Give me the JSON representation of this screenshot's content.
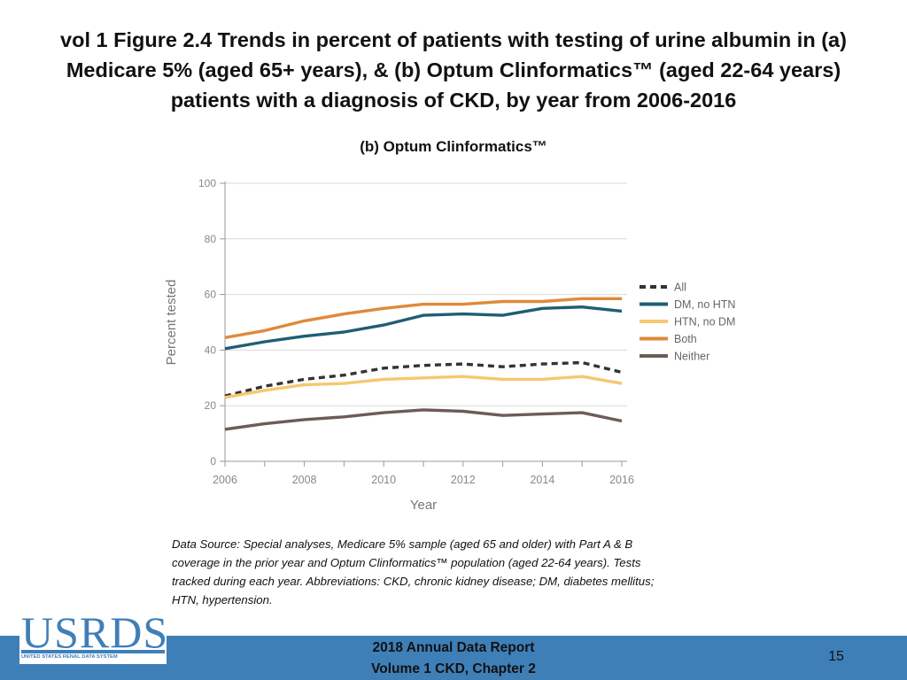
{
  "title": {
    "lines": [
      "vol 1 Figure 2.4 Trends in percent of patients with testing of urine albumin in (a)",
      "Medicare 5% (aged 65+ years), & (b) Optum Clinformatics™ (aged 22-64 years)",
      "patients with a diagnosis of CKD, by year from 2006-2016"
    ]
  },
  "chart_data": {
    "type": "line",
    "title": "(b) Optum Clinformatics™",
    "xlabel": "Year",
    "ylabel": "Percent tested",
    "x": [
      2006,
      2007,
      2008,
      2009,
      2010,
      2011,
      2012,
      2013,
      2014,
      2015,
      2016
    ],
    "xticks": [
      "2006",
      "2008",
      "2010",
      "2012",
      "2014",
      "2016"
    ],
    "yticks": [
      "0",
      "20",
      "40",
      "60",
      "80",
      "100"
    ],
    "xlim": [
      2006,
      2016
    ],
    "ylim": [
      0,
      100
    ],
    "grid": "horizontal",
    "legend_position": "right",
    "series": [
      {
        "name": "All",
        "color": "#333333",
        "style": "dashed",
        "values": [
          23.5,
          27,
          29.5,
          31,
          33.5,
          34.5,
          35,
          34,
          35,
          35.5,
          32
        ]
      },
      {
        "name": "DM, no HTN",
        "color": "#1f5e72",
        "style": "solid",
        "values": [
          40.5,
          43,
          45,
          46.5,
          49,
          52.5,
          53,
          52.5,
          55,
          55.5,
          54
        ]
      },
      {
        "name": "HTN, no DM",
        "color": "#f5c870",
        "style": "solid",
        "values": [
          23,
          25.5,
          27.5,
          28,
          29.5,
          30,
          30.5,
          29.5,
          29.5,
          30.5,
          28
        ]
      },
      {
        "name": "Both",
        "color": "#e0893a",
        "style": "solid",
        "values": [
          44.5,
          47,
          50.5,
          53,
          55,
          56.5,
          56.5,
          57.5,
          57.5,
          58.5,
          58.5
        ]
      },
      {
        "name": "Neither",
        "color": "#6e5b58",
        "style": "solid",
        "values": [
          11.5,
          13.5,
          15,
          16,
          17.5,
          18.5,
          18,
          16.5,
          17,
          17.5,
          14.5
        ]
      }
    ]
  },
  "footnote": {
    "lines": [
      "Data Source: Special analyses, Medicare 5% sample (aged 65 and older) with Part A & B",
      "coverage in the prior year and Optum Clinformatics™ population (aged 22-64 years). Tests",
      "tracked during each year. Abbreviations: CKD, chronic kidney disease; DM, diabetes mellitus;",
      "HTN, hypertension."
    ]
  },
  "logo": {
    "text": "USRDS",
    "subtitle": "UNITED STATES RENAL DATA SYSTEM"
  },
  "footer": {
    "line1": "2018 Annual Data Report",
    "line2": "Volume 1 CKD, Chapter 2",
    "page_number": "15",
    "bar_color": "#3f7fb8"
  }
}
